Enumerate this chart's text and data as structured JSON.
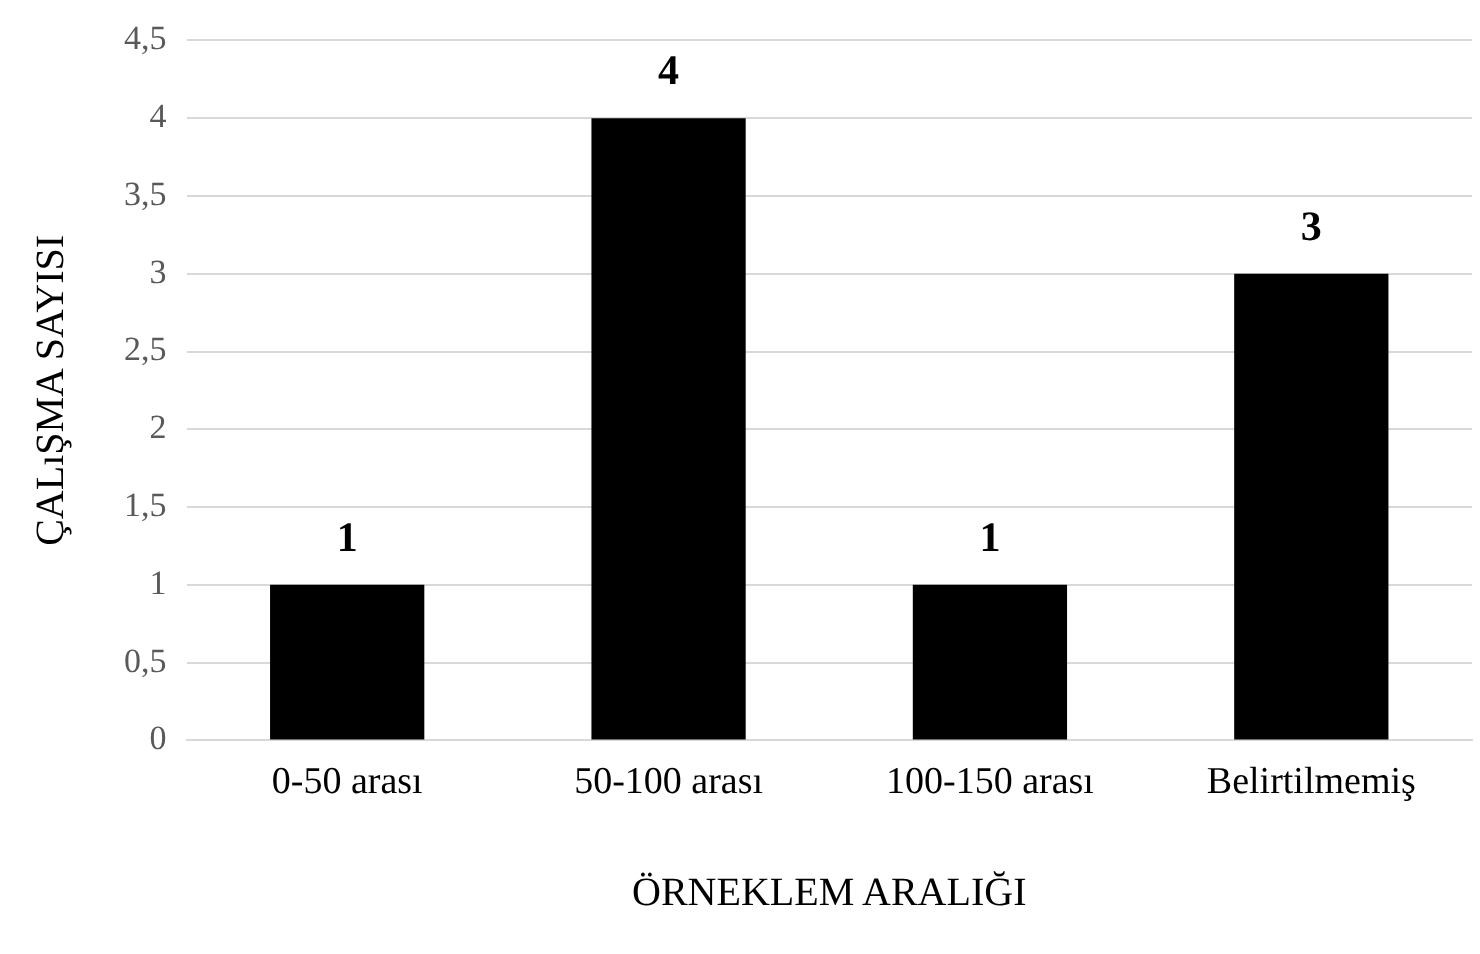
{
  "chart_data": {
    "type": "bar",
    "xlabel": "ÖRNEKLEM ARALIĞI",
    "ylabel": "ÇALıŞMA SAYISI",
    "categories": [
      "0-50 arası",
      "50-100 arası",
      "100-150 arası",
      "Belirtilmemiş"
    ],
    "values": [
      1,
      4,
      1,
      3
    ],
    "color": "#000000",
    "data_labels": true,
    "grid": "y",
    "legend": false,
    "ylim": [
      0,
      4.5
    ],
    "yticks": [
      0,
      {
        "value": 0.5,
        "label": "0,5"
      },
      1,
      {
        "value": 1.5,
        "label": "1,5"
      },
      2,
      {
        "value": 2.5,
        "label": "2,5"
      },
      3,
      {
        "value": 3.5,
        "label": "3,5"
      },
      4,
      {
        "value": 4.5,
        "label": "4,5"
      }
    ]
  }
}
